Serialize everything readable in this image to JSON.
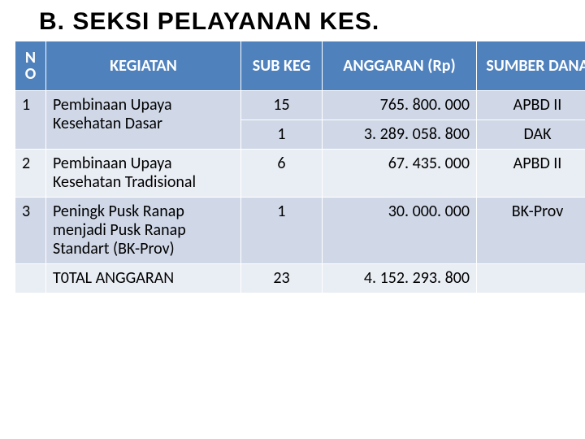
{
  "title": "B. SEKSI PELAYANAN KES.",
  "headers": {
    "no": "NO",
    "kegiatan": "KEGIATAN",
    "subkeg": "SUB KEG",
    "anggaran": "ANGGARAN (Rp)",
    "sumber": "SUMBER DANA"
  },
  "rows": {
    "r1": {
      "no": "1",
      "keg": "Pembinaan Upaya Kesehatan Dasar",
      "sub": "15",
      "ang": "765. 800. 000",
      "sum": "APBD II"
    },
    "r2": {
      "no": "",
      "keg": "",
      "sub": "1",
      "ang": "3. 289. 058. 800",
      "sum": "DAK"
    },
    "r3": {
      "no": "2",
      "keg": "Pembinaan Upaya Kesehatan Tradisional",
      "sub": "6",
      "ang": "67. 435. 000",
      "sum": "APBD II"
    },
    "r4": {
      "no": "3",
      "keg": "Peningk Pusk Ranap menjadi Pusk Ranap Standart (BK-Prov)",
      "sub": "1",
      "ang": "30. 000. 000",
      "sum": "BK-Prov"
    },
    "r5": {
      "no": "",
      "keg": "T0TAL ANGGARAN",
      "sub": "23",
      "ang": "4. 152. 293. 800",
      "sum": ""
    }
  },
  "style": {
    "header_bg": "#4f81bd",
    "band_light": "#d0d8e8",
    "band_dark": "#e9edf4",
    "title_font": "Arial Black",
    "body_font": "Calibri"
  }
}
